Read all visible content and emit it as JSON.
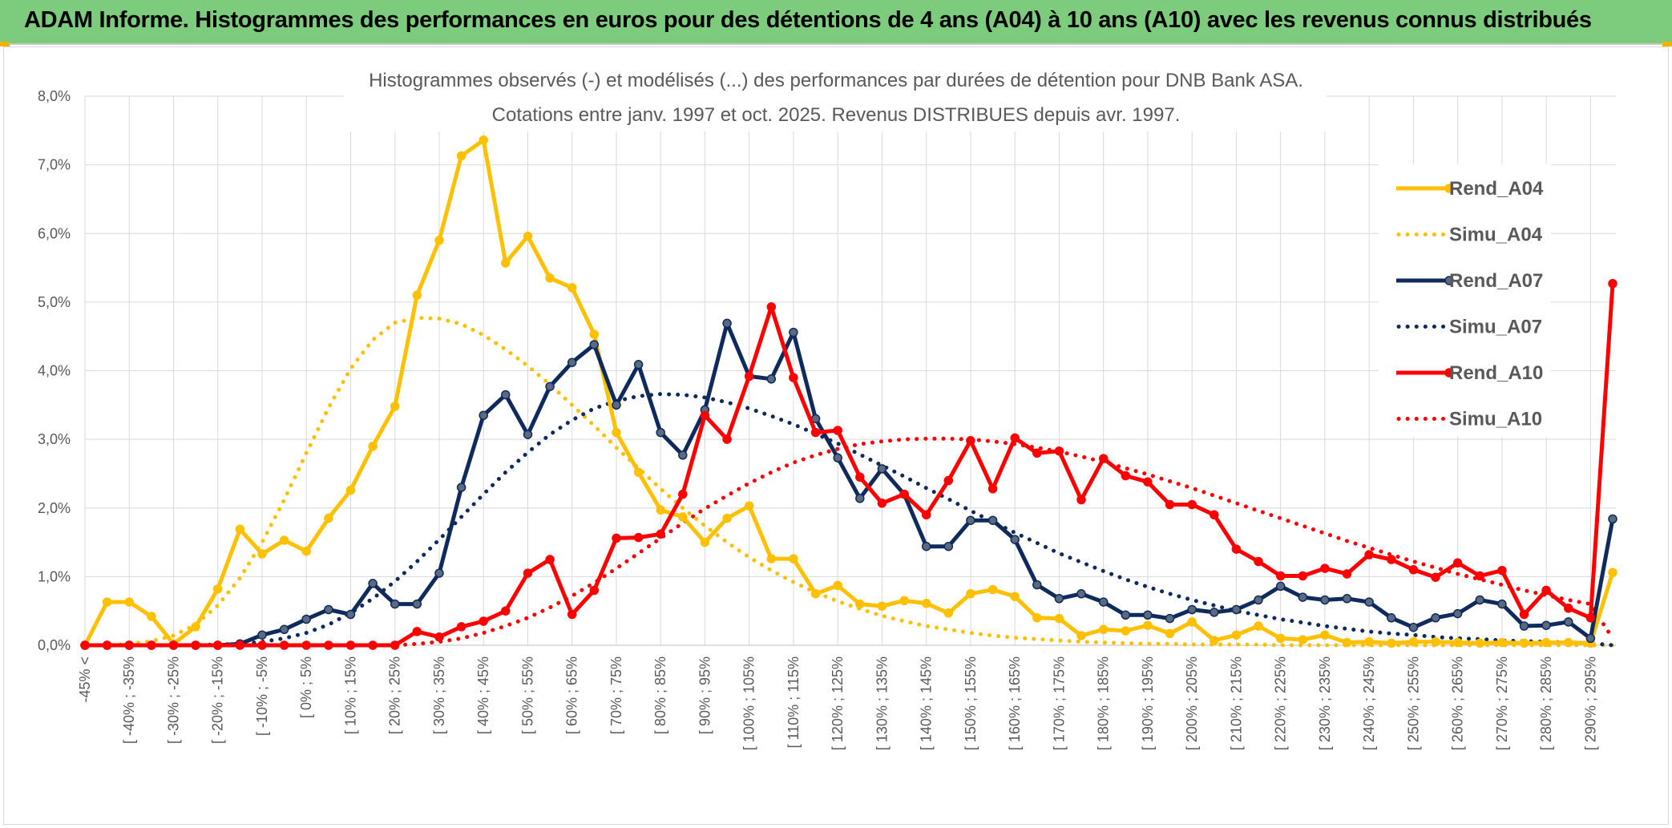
{
  "banner": {
    "title": "ADAM Informe. Histogrammes des performances en euros pour des détentions de 4 ans (A04) à 10 ans (A10) avec les revenus connus distribués"
  },
  "colors": {
    "banner_bg": "#7dcc7d",
    "accent": "#f0b400",
    "A04": "#ffc000",
    "A07": "#0f2a5c",
    "A07_marker": "#5a6a80",
    "A10": "#ff0000",
    "grid": "#d9d9d9"
  },
  "chart_data": {
    "type": "line",
    "title": [
      "Histogrammes observés (-) et modélisés (...) des performances par durées de détention pour DNB Bank ASA.",
      "Cotations entre janv. 1997 et oct. 2025. Revenus DISTRIBUES depuis avr. 1997."
    ],
    "xlabel": "",
    "ylabel": "",
    "ylim": [
      0,
      0.08
    ],
    "yticks": [
      "0,0%",
      "1,0%",
      "2,0%",
      "3,0%",
      "4,0%",
      "5,0%",
      "6,0%",
      "7,0%",
      "8,0%"
    ],
    "bins": 70,
    "xtick_labels": [
      "-45% <",
      "[ -40% ; -35%",
      "[ -30% ; -25%",
      "[ -20% ; -15%",
      "[ -10% ; -5%",
      "[ 0% ; 5%",
      "[ 10% ; 15%",
      "[ 20% ; 25%",
      "[ 30% ; 35%",
      "[ 40% ; 45%",
      "[ 50% ; 55%",
      "[ 60% ; 65%",
      "[ 70% ; 75%",
      "[ 80% ; 85%",
      "[ 90% ; 95%",
      "[ 100% ; 105%",
      "[ 110% ; 115%",
      "[ 120% ; 125%",
      "[ 130% ; 135%",
      "[ 140% ; 145%",
      "[ 150% ; 155%",
      "[ 160% ; 165%",
      "[ 170% ; 175%",
      "[ 180% ; 185%",
      "[ 190% ; 195%",
      "[ 200% ; 205%",
      "[ 210% ; 215%",
      "[ 220% ; 225%",
      "[ 230% ; 235%",
      "[ 240% ; 245%",
      "[ 250% ; 255%",
      "[ 260% ; 265%",
      "[ 270% ; 275%",
      "[ 280% ; 285%",
      "[ 290% ; 295%"
    ],
    "grid": true,
    "legend": "right",
    "series": [
      {
        "name": "Rend_A04",
        "style": "solid",
        "color": "#ffc000",
        "marker": true,
        "values": [
          0.0,
          0.0063,
          0.0063,
          0.0042,
          0.0002,
          0.0027,
          0.0082,
          0.0169,
          0.0133,
          0.0153,
          0.0137,
          0.0185,
          0.0226,
          0.029,
          0.0348,
          0.051,
          0.059,
          0.0713,
          0.0736,
          0.0557,
          0.0596,
          0.0535,
          0.0521,
          0.0453,
          0.031,
          0.0252,
          0.0197,
          0.0187,
          0.015,
          0.0185,
          0.0203,
          0.0126,
          0.0126,
          0.0075,
          0.0087,
          0.006,
          0.0057,
          0.0065,
          0.0061,
          0.0047,
          0.0075,
          0.0081,
          0.0071,
          0.004,
          0.0039,
          0.0014,
          0.0023,
          0.0021,
          0.0029,
          0.0017,
          0.0034,
          0.0007,
          0.0015,
          0.0028,
          0.001,
          0.0008,
          0.0015,
          0.0004,
          0.0005,
          0.0003,
          0.0005,
          0.0005,
          0.0004,
          0.0003,
          0.0004,
          0.0003,
          0.0004,
          0.0004,
          0.0003,
          0.0106
        ]
      },
      {
        "name": "Simu_A04",
        "style": "dotted",
        "color": "#ffc000",
        "marker": false,
        "values": [
          0.0,
          0.0,
          0.0002,
          0.0006,
          0.0014,
          0.003,
          0.0058,
          0.0098,
          0.015,
          0.0212,
          0.028,
          0.0346,
          0.0403,
          0.0445,
          0.047,
          0.0477,
          0.0476,
          0.0468,
          0.0452,
          0.0431,
          0.0407,
          0.038,
          0.035,
          0.032,
          0.0288,
          0.0258,
          0.0228,
          0.02,
          0.0174,
          0.015,
          0.0128,
          0.0109,
          0.0092,
          0.0077,
          0.0064,
          0.0053,
          0.0043,
          0.0035,
          0.0028,
          0.0023,
          0.0018,
          0.0014,
          0.0011,
          0.0009,
          0.0007,
          0.0005,
          0.0004,
          0.0003,
          0.0002,
          0.0002,
          0.0001,
          0.0001,
          0.0001,
          0.0001,
          0.0,
          0.0,
          0.0,
          0.0,
          0.0,
          0.0,
          0.0,
          0.0,
          0.0,
          0.0,
          0.0,
          0.0,
          0.0,
          0.0,
          0.0,
          0.0
        ]
      },
      {
        "name": "Rend_A07",
        "style": "solid",
        "color": "#0f2a5c",
        "marker": true,
        "values": [
          0.0,
          0.0,
          0.0,
          0.0,
          0.0,
          0.0,
          0.0,
          0.0002,
          0.0015,
          0.0023,
          0.0038,
          0.0052,
          0.0045,
          0.009,
          0.006,
          0.006,
          0.0105,
          0.023,
          0.0335,
          0.0365,
          0.0307,
          0.0377,
          0.0412,
          0.0438,
          0.035,
          0.0409,
          0.031,
          0.0277,
          0.0343,
          0.0469,
          0.0392,
          0.0388,
          0.0456,
          0.033,
          0.0273,
          0.0214,
          0.0257,
          0.022,
          0.0144,
          0.0144,
          0.0182,
          0.0182,
          0.0154,
          0.0088,
          0.0068,
          0.0075,
          0.0063,
          0.0044,
          0.0044,
          0.0039,
          0.0052,
          0.0048,
          0.0052,
          0.0066,
          0.0086,
          0.007,
          0.0066,
          0.0068,
          0.0063,
          0.004,
          0.0026,
          0.004,
          0.0046,
          0.0066,
          0.006,
          0.0028,
          0.0029,
          0.0034,
          0.001,
          0.0184
        ]
      },
      {
        "name": "Simu_A07",
        "style": "dotted",
        "color": "#0f2a5c",
        "marker": false,
        "values": [
          0.0,
          0.0,
          0.0,
          0.0,
          0.0,
          0.0,
          0.0001,
          0.0002,
          0.0005,
          0.001,
          0.0018,
          0.003,
          0.0047,
          0.0068,
          0.0093,
          0.0122,
          0.0154,
          0.0187,
          0.022,
          0.0252,
          0.0281,
          0.0307,
          0.0328,
          0.0345,
          0.0356,
          0.0363,
          0.0366,
          0.0365,
          0.0361,
          0.0354,
          0.0345,
          0.0334,
          0.0322,
          0.0308,
          0.0294,
          0.0278,
          0.0262,
          0.0246,
          0.0229,
          0.0213,
          0.0196,
          0.018,
          0.0164,
          0.0149,
          0.0134,
          0.0121,
          0.0108,
          0.0096,
          0.0085,
          0.0075,
          0.0066,
          0.0058,
          0.005,
          0.0044,
          0.0038,
          0.0033,
          0.0028,
          0.0024,
          0.002,
          0.0017,
          0.0015,
          0.0012,
          0.001,
          0.0009,
          0.0007,
          0.0006,
          0.0005,
          0.0004,
          0.0003,
          0.0
        ]
      },
      {
        "name": "Rend_A10",
        "style": "solid",
        "color": "#ff0000",
        "marker": true,
        "values": [
          0.0,
          0.0,
          0.0,
          0.0,
          0.0,
          0.0,
          0.0,
          0.0,
          0.0,
          0.0,
          0.0,
          0.0,
          0.0,
          0.0,
          0.0,
          0.002,
          0.0012,
          0.0027,
          0.0035,
          0.005,
          0.0105,
          0.0125,
          0.0045,
          0.008,
          0.0156,
          0.0157,
          0.0162,
          0.022,
          0.0335,
          0.03,
          0.0392,
          0.0493,
          0.039,
          0.031,
          0.0313,
          0.0245,
          0.0207,
          0.022,
          0.019,
          0.024,
          0.0298,
          0.0228,
          0.0302,
          0.028,
          0.0283,
          0.0212,
          0.0272,
          0.0247,
          0.0238,
          0.0205,
          0.0205,
          0.019,
          0.014,
          0.0122,
          0.0101,
          0.0101,
          0.0112,
          0.0104,
          0.0132,
          0.0125,
          0.011,
          0.0099,
          0.012,
          0.0101,
          0.0109,
          0.0045,
          0.008,
          0.0054,
          0.004,
          0.0527
        ]
      },
      {
        "name": "Simu_A10",
        "style": "dotted",
        "color": "#ff0000",
        "marker": false,
        "values": [
          0.0,
          0.0,
          0.0,
          0.0,
          0.0,
          0.0,
          0.0,
          0.0,
          0.0,
          0.0,
          0.0,
          0.0,
          0.0,
          0.0,
          0.0,
          0.0002,
          0.0005,
          0.001,
          0.0018,
          0.0028,
          0.004,
          0.0055,
          0.0072,
          0.0091,
          0.0112,
          0.0134,
          0.0156,
          0.0178,
          0.0199,
          0.0218,
          0.0236,
          0.0252,
          0.0266,
          0.0277,
          0.0286,
          0.0293,
          0.0297,
          0.03,
          0.0301,
          0.0301,
          0.03,
          0.0297,
          0.0293,
          0.0288,
          0.0282,
          0.0275,
          0.0267,
          0.0258,
          0.0249,
          0.0239,
          0.0229,
          0.0218,
          0.0207,
          0.0196,
          0.0185,
          0.0174,
          0.0163,
          0.0152,
          0.0142,
          0.0132,
          0.0122,
          0.0113,
          0.0104,
          0.0096,
          0.0088,
          0.008,
          0.0073,
          0.0066,
          0.006,
          0.001
        ]
      }
    ]
  }
}
